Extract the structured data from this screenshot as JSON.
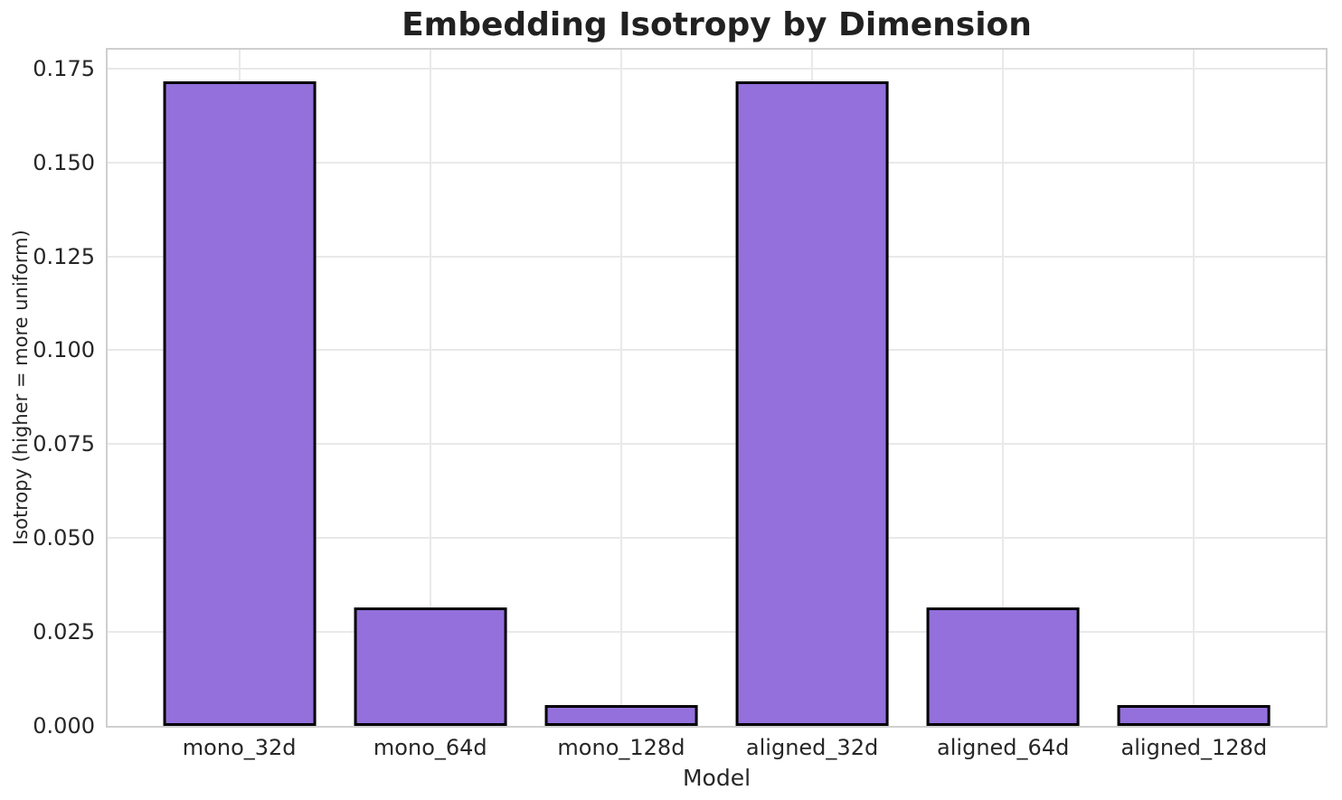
{
  "chart_data": {
    "type": "bar",
    "title": "Embedding Isotropy by Dimension",
    "xlabel": "Model",
    "ylabel": "Isotropy (higher = more uniform)",
    "categories": [
      "mono_32d",
      "mono_64d",
      "mono_128d",
      "aligned_32d",
      "aligned_64d",
      "aligned_128d"
    ],
    "values": [
      0.1716,
      0.0316,
      0.0055,
      0.1716,
      0.0316,
      0.0055
    ],
    "ylim": [
      0,
      0.18
    ],
    "yticks": [
      0,
      0.025,
      0.05,
      0.075,
      0.1,
      0.125,
      0.15,
      0.175
    ],
    "ytick_labels": [
      "0.000",
      "0.025",
      "0.050",
      "0.075",
      "0.100",
      "0.125",
      "0.150",
      "0.175"
    ],
    "grid": true,
    "legend": false,
    "bar_width_fraction": 0.8,
    "colors": {
      "bar_fill": "#9370DB",
      "bar_edge": "#000000",
      "grid": "#e9e9e9",
      "spine": "#cfcfcf",
      "text": "#262626"
    }
  }
}
